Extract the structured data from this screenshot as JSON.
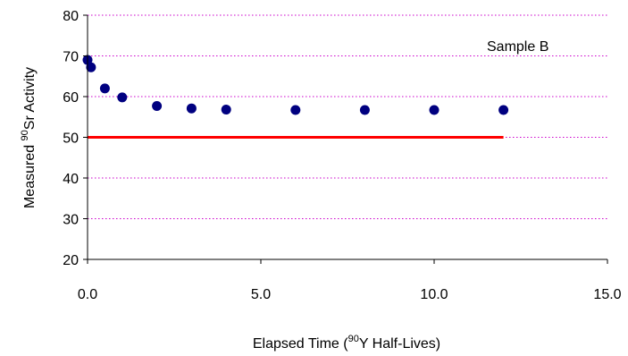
{
  "chart_data": {
    "type": "scatter",
    "title": "",
    "xlabel": {
      "prefix": "Elapsed Time (",
      "superscript": "90",
      "suffix": "Y Half-Lives)"
    },
    "ylabel": {
      "prefix": "Measured ",
      "superscript": "90",
      "suffix": "Sr Activity"
    },
    "xlim": [
      0,
      15
    ],
    "ylim": [
      20,
      80
    ],
    "x_ticks": [
      0,
      5,
      10,
      15
    ],
    "x_tick_labels": [
      "0.0",
      "5.0",
      "10.0",
      "15.0"
    ],
    "y_ticks": [
      20,
      30,
      40,
      50,
      60,
      70,
      80
    ],
    "y_tick_labels": [
      "20",
      "30",
      "40",
      "50",
      "60",
      "70",
      "80"
    ],
    "grid": {
      "horizontal": true,
      "style": "dotted",
      "color": "#cc00cc"
    },
    "annotation": "Sample B",
    "series": [
      {
        "kind": "scatter",
        "color": "#000080",
        "x": [
          0,
          0.1,
          0.5,
          1,
          2,
          3,
          4,
          6,
          8,
          10,
          12
        ],
        "y": [
          69,
          67.2,
          62,
          59.8,
          57.7,
          57.1,
          56.8,
          56.7,
          56.7,
          56.7,
          56.7
        ]
      },
      {
        "kind": "line",
        "color": "#ff0000",
        "x": [
          0,
          12
        ],
        "y": [
          50,
          50
        ]
      }
    ]
  }
}
